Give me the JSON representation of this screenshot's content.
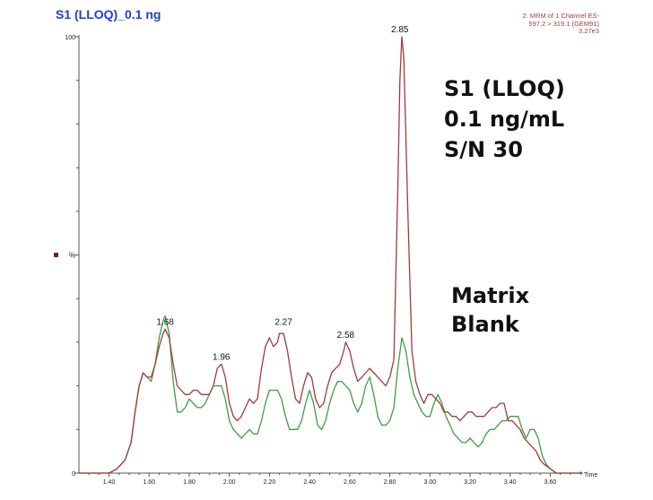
{
  "title": "S1 (LLOQ)_0.1 ng",
  "channel_info": [
    "2: MRM of 1 Channel ES-",
    "597.2 > 319.1 (GEM91)",
    "3.27e3"
  ],
  "annotation_right": [
    "S1 (LLOQ)",
    "0.1 ng/mL",
    "S/N 30"
  ],
  "annotation_matrix": [
    "Matrix",
    "Blank"
  ],
  "colors": {
    "sample": "#a33a3a",
    "blank": "#3f9f3f",
    "title": "#1f3fcf"
  },
  "chart_data": {
    "type": "line",
    "title": "S1 (LLOQ)_0.1 ng",
    "xlabel": "Time",
    "ylabel": "%",
    "xlim": [
      1.25,
      3.75
    ],
    "ylim": [
      0,
      100
    ],
    "x_ticks": [
      "1.40",
      "1.60",
      "1.80",
      "2.00",
      "2.20",
      "2.40",
      "2.60",
      "2.80",
      "3.00",
      "3.20",
      "3.40",
      "3.60"
    ],
    "y_ticks": [
      "0",
      "100"
    ],
    "peak_labels": [
      {
        "x": 1.68,
        "y": 33,
        "label": "1.68"
      },
      {
        "x": 1.96,
        "y": 25,
        "label": "1.96"
      },
      {
        "x": 2.27,
        "y": 33,
        "label": "2.27"
      },
      {
        "x": 2.58,
        "y": 30,
        "label": "2.58"
      },
      {
        "x": 2.85,
        "y": 100,
        "label": "2.85"
      }
    ],
    "series": [
      {
        "key": "sample",
        "x": [
          1.25,
          1.4,
          1.44,
          1.48,
          1.51,
          1.53,
          1.55,
          1.57,
          1.59,
          1.61,
          1.63,
          1.65,
          1.67,
          1.68,
          1.7,
          1.72,
          1.74,
          1.76,
          1.78,
          1.8,
          1.82,
          1.84,
          1.86,
          1.88,
          1.9,
          1.92,
          1.94,
          1.96,
          1.98,
          2.0,
          2.02,
          2.04,
          2.06,
          2.08,
          2.1,
          2.12,
          2.14,
          2.16,
          2.18,
          2.2,
          2.22,
          2.24,
          2.25,
          2.27,
          2.29,
          2.31,
          2.33,
          2.35,
          2.37,
          2.39,
          2.41,
          2.43,
          2.45,
          2.47,
          2.49,
          2.51,
          2.53,
          2.55,
          2.57,
          2.58,
          2.6,
          2.62,
          2.64,
          2.66,
          2.68,
          2.7,
          2.72,
          2.74,
          2.76,
          2.78,
          2.8,
          2.82,
          2.84,
          2.85,
          2.86,
          2.87,
          2.89,
          2.91,
          2.93,
          2.95,
          2.97,
          2.99,
          3.01,
          3.03,
          3.05,
          3.07,
          3.09,
          3.11,
          3.13,
          3.15,
          3.17,
          3.19,
          3.21,
          3.23,
          3.25,
          3.27,
          3.29,
          3.31,
          3.33,
          3.35,
          3.37,
          3.39,
          3.41,
          3.43,
          3.45,
          3.47,
          3.49,
          3.51,
          3.53,
          3.55,
          3.57,
          3.6,
          3.63,
          3.66,
          3.7,
          3.75
        ],
        "y": [
          0,
          0,
          1,
          3,
          7,
          14,
          20,
          23,
          22,
          22,
          25,
          29,
          32,
          33,
          31,
          25,
          20,
          19,
          18,
          18,
          19,
          19,
          18,
          18,
          18,
          20,
          24,
          25,
          22,
          16,
          13,
          12,
          13,
          15,
          17,
          16,
          17,
          24,
          29,
          31,
          29,
          30,
          32,
          32,
          28,
          22,
          17,
          16,
          20,
          23,
          22,
          17,
          15,
          16,
          20,
          23,
          24,
          25,
          28,
          30,
          28,
          24,
          21,
          22,
          23,
          24,
          23,
          22,
          21,
          20,
          22,
          26,
          65,
          90,
          100,
          95,
          60,
          28,
          21,
          18,
          16,
          18,
          18,
          17,
          16,
          14,
          14,
          13,
          13,
          12,
          13,
          14,
          14,
          13,
          13,
          13,
          14,
          15,
          15,
          16,
          16,
          12,
          12,
          11,
          10,
          8,
          7,
          6,
          5,
          3,
          2,
          1,
          0,
          0,
          0,
          0
        ]
      },
      {
        "key": "blank",
        "x": [
          1.25,
          1.4,
          1.44,
          1.48,
          1.51,
          1.53,
          1.55,
          1.57,
          1.59,
          1.61,
          1.63,
          1.65,
          1.67,
          1.68,
          1.7,
          1.72,
          1.74,
          1.76,
          1.78,
          1.8,
          1.82,
          1.84,
          1.86,
          1.88,
          1.9,
          1.92,
          1.94,
          1.96,
          1.98,
          2.0,
          2.02,
          2.04,
          2.06,
          2.08,
          2.1,
          2.12,
          2.14,
          2.16,
          2.18,
          2.2,
          2.22,
          2.24,
          2.26,
          2.28,
          2.3,
          2.32,
          2.34,
          2.36,
          2.38,
          2.4,
          2.42,
          2.44,
          2.46,
          2.48,
          2.5,
          2.52,
          2.54,
          2.56,
          2.58,
          2.6,
          2.62,
          2.64,
          2.66,
          2.68,
          2.7,
          2.72,
          2.74,
          2.76,
          2.78,
          2.8,
          2.82,
          2.84,
          2.86,
          2.88,
          2.9,
          2.92,
          2.94,
          2.96,
          2.98,
          3.0,
          3.02,
          3.04,
          3.06,
          3.08,
          3.1,
          3.12,
          3.14,
          3.16,
          3.18,
          3.2,
          3.22,
          3.24,
          3.26,
          3.28,
          3.3,
          3.32,
          3.34,
          3.36,
          3.38,
          3.4,
          3.42,
          3.44,
          3.46,
          3.48,
          3.5,
          3.52,
          3.54,
          3.56,
          3.58,
          3.6,
          3.63,
          3.66,
          3.7,
          3.75
        ],
        "y": [
          0,
          0,
          1,
          3,
          7,
          14,
          20,
          23,
          22,
          21,
          25,
          31,
          35,
          36,
          32,
          21,
          14,
          14,
          15,
          17,
          16,
          15,
          15,
          16,
          18,
          20,
          20,
          20,
          17,
          12,
          10,
          9,
          8,
          9,
          10,
          9,
          9,
          12,
          16,
          19,
          19,
          19,
          17,
          13,
          10,
          10,
          10,
          12,
          16,
          19,
          16,
          11,
          10,
          12,
          16,
          19,
          21,
          21,
          20,
          19,
          16,
          14,
          16,
          20,
          22,
          18,
          13,
          11,
          11,
          12,
          15,
          24,
          31,
          28,
          22,
          18,
          16,
          14,
          13,
          13,
          16,
          18,
          16,
          13,
          11,
          9,
          8,
          7,
          7,
          8,
          7,
          6,
          7,
          9,
          10,
          10,
          11,
          12,
          12,
          13,
          13,
          13,
          10,
          8,
          10,
          10,
          8,
          4,
          2,
          1,
          0,
          0,
          0,
          0
        ]
      }
    ]
  }
}
